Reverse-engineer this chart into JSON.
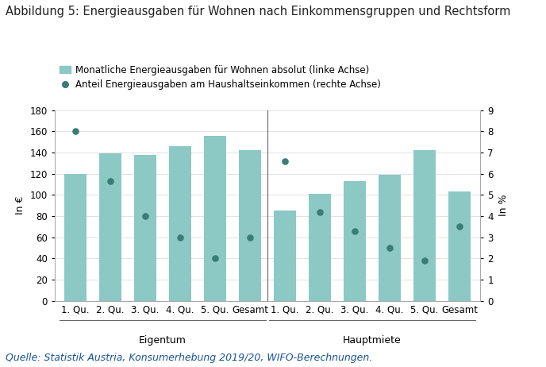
{
  "title": "Abbildung 5: Energieausgaben für Wohnen nach Einkommensgruppen und Rechtsform",
  "source": "Quelle: Statistik Austria, Konsumerhebung 2019/20, WIFO-Berechnungen.",
  "categories": [
    "1. Qu.",
    "2. Qu.",
    "3. Qu.",
    "4. Qu.",
    "5. Qu.",
    "Gesamt",
    "1. Qu.",
    "2. Qu.",
    "3. Qu.",
    "4. Qu.",
    "5. Qu.",
    "Gesamt"
  ],
  "group_labels": [
    "Eigentum",
    "Hauptmiete"
  ],
  "bar_values": [
    120,
    139,
    138,
    146,
    156,
    142,
    85,
    101,
    113,
    119,
    142,
    103
  ],
  "dot_values_pct": [
    8.0,
    5.65,
    4.0,
    3.0,
    2.0,
    3.0,
    6.6,
    4.2,
    3.3,
    2.5,
    1.9,
    3.5
  ],
  "bar_color": "#8cc8c4",
  "dot_color": "#3a7d74",
  "legend_bar_label": "Monatliche Energieausgaben für Wohnen absolut (linke Achse)",
  "legend_dot_label": "Anteil Energieausgaben am Haushaltseinkommen (rechte Achse)",
  "ylabel_left": "In €",
  "ylabel_right": "In %",
  "ylim_left": [
    0,
    180
  ],
  "ylim_right": [
    0,
    9
  ],
  "yticks_left": [
    0,
    20,
    40,
    60,
    80,
    100,
    120,
    140,
    160,
    180
  ],
  "yticks_right": [
    0,
    1,
    2,
    3,
    4,
    5,
    6,
    7,
    8,
    9
  ],
  "background_color": "#ffffff",
  "title_fontsize": 10.5,
  "label_fontsize": 9,
  "tick_fontsize": 8.5,
  "source_fontsize": 9
}
